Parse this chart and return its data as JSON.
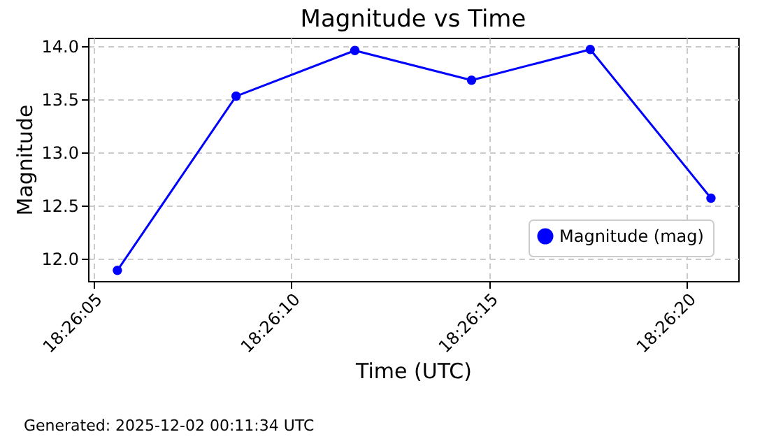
{
  "chart_data": {
    "type": "line",
    "title": "Magnitude vs Time",
    "xlabel": "Time (UTC)",
    "ylabel": "Magnitude",
    "x": [
      18.4348889,
      18.4357222,
      18.4365556,
      18.437375,
      18.4382083,
      18.4390556
    ],
    "series": [
      {
        "name": "Magnitude (mag)",
        "color": "#0000ff",
        "values": [
          11.89,
          13.53,
          13.96,
          13.68,
          13.97,
          12.57
        ]
      }
    ],
    "xlim": [
      18.4346833,
      18.4392472
    ],
    "xticks": [
      {
        "value": 18.4347222,
        "label": "18:26:05"
      },
      {
        "value": 18.4361111,
        "label": "18:26:10"
      },
      {
        "value": 18.4375,
        "label": "18:26:15"
      },
      {
        "value": 18.4388889,
        "label": "18:26:20"
      }
    ],
    "ylim": [
      11.79,
      14.08
    ],
    "yticks": [
      {
        "value": 12,
        "label": "12.0"
      },
      {
        "value": 12.5,
        "label": "12.5"
      },
      {
        "value": 13,
        "label": "13.0"
      },
      {
        "value": 13.5,
        "label": "13.5"
      },
      {
        "value": 14,
        "label": "14.0"
      }
    ],
    "grid": true,
    "legend": "bottom right",
    "marker": "circle",
    "line_style": "solid",
    "annotations": [
      "Generated: 2025-12-02 00:11:34 UTC"
    ]
  }
}
